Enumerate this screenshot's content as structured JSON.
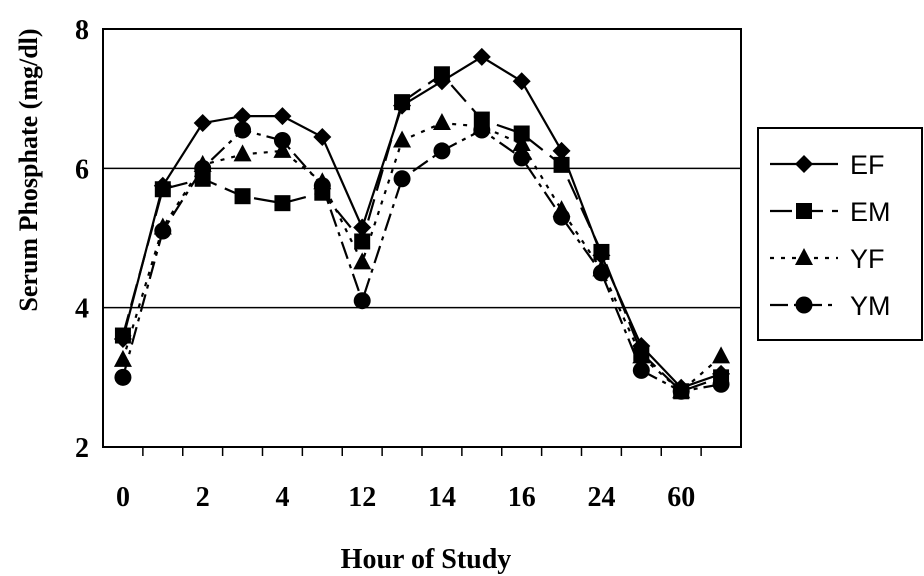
{
  "chart_data": {
    "type": "line",
    "xlabel": "Hour of Study",
    "ylabel": "Serum Phosphate (mg/dl)",
    "ylim": [
      2,
      8
    ],
    "yticks": [
      "2",
      "4",
      "6",
      "8"
    ],
    "xtick_labels": [
      "0",
      "2",
      "4",
      "12",
      "14",
      "16",
      "24",
      "60"
    ],
    "grid": "horizontal",
    "legend_position": "right",
    "series": [
      {
        "name": "EF",
        "marker": "diamond",
        "dash": "solid",
        "values": [
          3.55,
          5.75,
          6.65,
          6.75,
          6.75,
          6.45,
          5.15,
          6.9,
          7.25,
          7.6,
          7.25,
          6.25,
          4.75,
          3.45,
          2.85,
          3.05
        ]
      },
      {
        "name": "EM",
        "marker": "square",
        "dash": "long-dash",
        "values": [
          3.6,
          5.7,
          5.85,
          5.6,
          5.5,
          5.65,
          4.95,
          6.95,
          7.35,
          6.7,
          6.5,
          6.05,
          4.8,
          3.35,
          2.8,
          3.0
        ]
      },
      {
        "name": "YF",
        "marker": "triangle",
        "dash": "dotted",
        "values": [
          3.25,
          5.15,
          6.05,
          6.2,
          6.25,
          5.8,
          4.65,
          6.4,
          6.65,
          6.6,
          6.35,
          5.4,
          4.55,
          3.3,
          2.8,
          3.3
        ]
      },
      {
        "name": "YM",
        "marker": "circle",
        "dash": "dash-dot",
        "values": [
          3.0,
          5.1,
          6.0,
          6.55,
          6.4,
          5.75,
          4.1,
          5.85,
          6.25,
          6.55,
          6.15,
          5.3,
          4.5,
          3.1,
          2.8,
          2.9
        ]
      }
    ]
  }
}
